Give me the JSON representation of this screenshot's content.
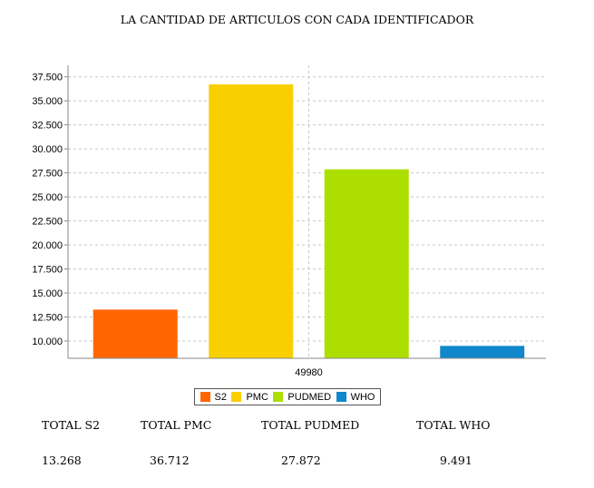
{
  "chart_data": {
    "type": "bar",
    "title": "LA CANTIDAD DE ARTICULOS CON CADA IDENTIFICADOR",
    "categories": [
      "49980"
    ],
    "series": [
      {
        "name": "S2",
        "values": [
          13268
        ],
        "color": "#ff6600"
      },
      {
        "name": "PMC",
        "values": [
          36712
        ],
        "color": "#f9cf00"
      },
      {
        "name": "PUDMED",
        "values": [
          27872
        ],
        "color": "#acdf00"
      },
      {
        "name": "WHO",
        "values": [
          9491
        ],
        "color": "#1188cc"
      }
    ],
    "ylim": [
      8200,
      38700
    ],
    "yticks": [
      10000,
      12500,
      15000,
      17500,
      20000,
      22500,
      25000,
      27500,
      30000,
      32500,
      35000,
      37500
    ],
    "ytick_labels": [
      "10.000",
      "12.500",
      "15.000",
      "17.500",
      "20.000",
      "22.500",
      "25.000",
      "27.500",
      "30.000",
      "32.500",
      "35.000",
      "37.500"
    ],
    "xlabel": "",
    "ylabel": "",
    "grid": true,
    "legend_position": "bottom"
  },
  "totals": {
    "labels": [
      "TOTAL S2",
      "TOTAL PMC",
      "TOTAL PUDMED",
      "TOTAL WHO"
    ],
    "values": [
      "13.268",
      "36.712",
      "27.872",
      "9.491"
    ]
  }
}
